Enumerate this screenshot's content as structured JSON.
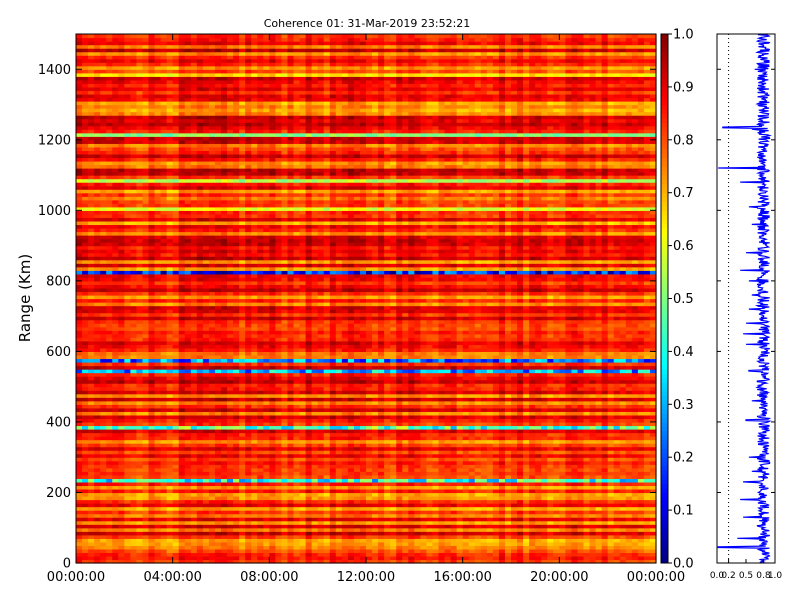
{
  "chart_data": {
    "type": "heatmap",
    "title": "Coherence 01: 31-Mar-2019 23:52:21",
    "ylabel": "Range (Km)",
    "xlabel": "",
    "ylim": [
      0,
      1500
    ],
    "y_ticks": [
      "0",
      "200",
      "400",
      "600",
      "800",
      "1000",
      "1200",
      "1400"
    ],
    "x_ticks": [
      "00:00:00",
      "04:00:00",
      "08:00:00",
      "12:00:00",
      "16:00:00",
      "20:00:00",
      "00:00:00"
    ],
    "colorbar": {
      "range": [
        0.0,
        1.0
      ],
      "colormap": "jet",
      "ticks": [
        "0.0",
        "0.1",
        "0.2",
        "0.3",
        "0.4",
        "0.5",
        "0.6",
        "0.7",
        "0.8",
        "0.9",
        "1.0"
      ]
    },
    "grid": false,
    "range_bands_km_coherence": [
      {
        "range": 30,
        "value": 0.8
      },
      {
        "range": 230,
        "value": 0.4
      },
      {
        "range": 320,
        "value": 0.9
      },
      {
        "range": 380,
        "value": 0.45
      },
      {
        "range": 545,
        "value": 0.3
      },
      {
        "range": 570,
        "value": 0.25
      },
      {
        "range": 820,
        "value": 0.15
      },
      {
        "range": 1000,
        "value": 0.6
      },
      {
        "range": 1080,
        "value": 0.55
      },
      {
        "range": 1210,
        "value": 0.5
      },
      {
        "range": 1250,
        "value": 0.9
      },
      {
        "range": 1380,
        "value": 0.65
      }
    ],
    "side_profile": {
      "xlim": [
        0.0,
        1.0
      ],
      "x_ticks": [
        "0.0",
        "0.2",
        "0.5",
        "0.8",
        "1.0"
      ],
      "reference_line": 0.2,
      "typical_value": 0.8
    }
  }
}
